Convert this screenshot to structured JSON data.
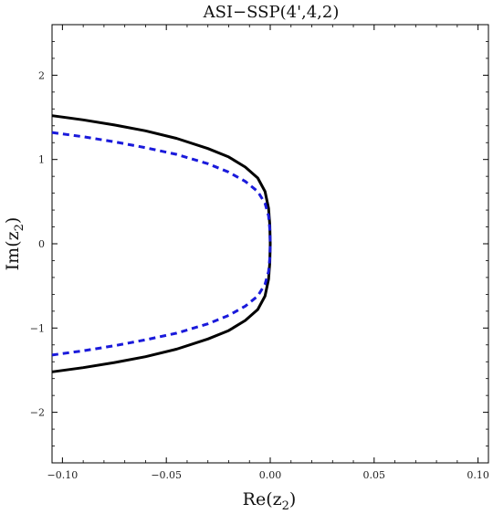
{
  "chart_data": {
    "type": "line",
    "title": "ASI−SSP(4',4,2)",
    "xlabel": {
      "base": "Re(z",
      "sub": "2",
      "close": ")"
    },
    "ylabel": {
      "base": "Im(z",
      "sub": "2",
      "close": ")"
    },
    "xlim": [
      -0.105,
      0.105
    ],
    "ylim": [
      -2.6,
      2.6
    ],
    "x_ticks": [
      -0.1,
      -0.05,
      0.0,
      0.05,
      0.1
    ],
    "x_tick_labels": [
      "−0.10",
      "−0.05",
      "0.00",
      "0.05",
      "0.10"
    ],
    "y_ticks": [
      -2,
      -1,
      0,
      1,
      2
    ],
    "y_tick_labels": [
      "−2",
      "−1",
      "0",
      "1",
      "2"
    ],
    "grid": false,
    "series": [
      {
        "style": "solid",
        "color": "#000000",
        "points": [
          [
            -0.105,
            1.52
          ],
          [
            -0.09,
            1.47
          ],
          [
            -0.075,
            1.41
          ],
          [
            -0.06,
            1.34
          ],
          [
            -0.045,
            1.25
          ],
          [
            -0.03,
            1.13
          ],
          [
            -0.02,
            1.03
          ],
          [
            -0.012,
            0.91
          ],
          [
            -0.006,
            0.78
          ],
          [
            -0.0025,
            0.62
          ],
          [
            -0.0008,
            0.42
          ],
          [
            -0.0002,
            0.22
          ],
          [
            0.0,
            0.0
          ],
          [
            -0.0002,
            -0.22
          ],
          [
            -0.0008,
            -0.42
          ],
          [
            -0.0025,
            -0.62
          ],
          [
            -0.006,
            -0.78
          ],
          [
            -0.012,
            -0.91
          ],
          [
            -0.02,
            -1.03
          ],
          [
            -0.03,
            -1.13
          ],
          [
            -0.045,
            -1.25
          ],
          [
            -0.06,
            -1.34
          ],
          [
            -0.075,
            -1.41
          ],
          [
            -0.09,
            -1.47
          ],
          [
            -0.105,
            -1.52
          ]
        ]
      },
      {
        "style": "dashed",
        "color": "#1a1adb",
        "points": [
          [
            -0.105,
            1.32
          ],
          [
            -0.09,
            1.27
          ],
          [
            -0.075,
            1.21
          ],
          [
            -0.06,
            1.14
          ],
          [
            -0.045,
            1.06
          ],
          [
            -0.03,
            0.95
          ],
          [
            -0.02,
            0.85
          ],
          [
            -0.012,
            0.74
          ],
          [
            -0.006,
            0.62
          ],
          [
            -0.0025,
            0.48
          ],
          [
            -0.0008,
            0.33
          ],
          [
            -0.0002,
            0.17
          ],
          [
            0.0,
            0.0
          ],
          [
            -0.0002,
            -0.17
          ],
          [
            -0.0008,
            -0.33
          ],
          [
            -0.0025,
            -0.48
          ],
          [
            -0.006,
            -0.62
          ],
          [
            -0.012,
            -0.74
          ],
          [
            -0.02,
            -0.85
          ],
          [
            -0.03,
            -0.95
          ],
          [
            -0.045,
            -1.06
          ],
          [
            -0.06,
            -1.14
          ],
          [
            -0.075,
            -1.21
          ],
          [
            -0.09,
            -1.27
          ],
          [
            -0.105,
            -1.32
          ]
        ]
      }
    ]
  },
  "colors": {
    "frame": "#000000",
    "background": "#ffffff"
  }
}
